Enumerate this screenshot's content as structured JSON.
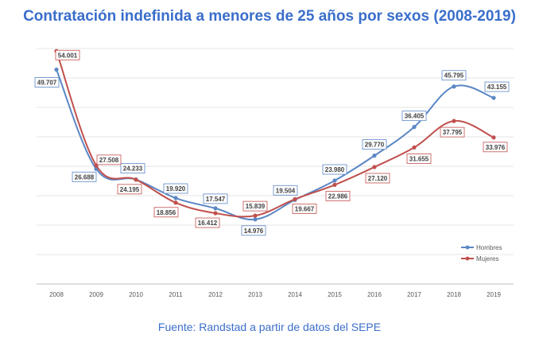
{
  "title": "Contratación indefinida a menores de 25 años por sexos (2008-2019)",
  "source": "Fuente: Randstad a partir de datos del SEPE",
  "colors": {
    "title": "#3a6ecb",
    "hombres": "#5b87c5",
    "mujeres": "#c0504d",
    "grid": "#e4e4e4"
  },
  "chart_data": {
    "type": "line",
    "title": "Contratación indefinida a menores de 25 años por sexos (2008-2019)",
    "x": [
      "2008",
      "2009",
      "2010",
      "2011",
      "2012",
      "2013",
      "2014",
      "2015",
      "2016",
      "2017",
      "2018",
      "2019"
    ],
    "ylim": [
      0,
      57000
    ],
    "grid": true,
    "legend": "bottom-right",
    "series": [
      {
        "name": "Hombres",
        "color": "#5b87c5",
        "values": [
          49707,
          26688,
          24233,
          19920,
          17547,
          14976,
          19504,
          23980,
          29770,
          36405,
          45795,
          43155
        ],
        "labels": [
          "49.707",
          "26.688",
          "24.233",
          "19.920",
          "17.547",
          "14.976",
          "19.504",
          "23.980",
          "29.770",
          "36.405",
          "45.795",
          "43.155"
        ]
      },
      {
        "name": "Mujeres",
        "color": "#c0504d",
        "values": [
          54001,
          27508,
          24195,
          18856,
          16412,
          15839,
          19667,
          22986,
          27120,
          31655,
          37795,
          33976
        ],
        "labels": [
          "54.001",
          "27.508",
          "24.195",
          "18.856",
          "16.412",
          "15.839",
          "19.667",
          "22.986",
          "27.120",
          "31.655",
          "37.795",
          "33.976"
        ]
      }
    ]
  }
}
